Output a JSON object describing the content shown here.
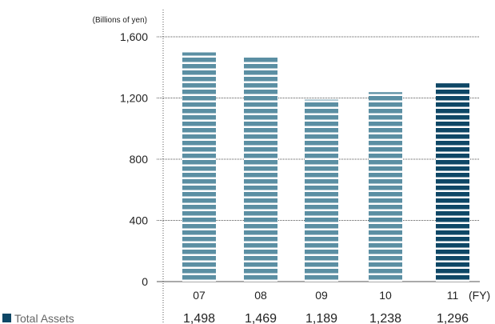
{
  "chart_data": {
    "type": "bar",
    "unit_label": "(Billions of yen)",
    "x_unit_label": "(FY)",
    "categories": [
      "07",
      "08",
      "09",
      "10",
      "11"
    ],
    "values": [
      1498,
      1469,
      1189,
      1238,
      1296
    ],
    "value_labels": [
      "1,498",
      "1,469",
      "1,189",
      "1,238",
      "1,296"
    ],
    "ylim": [
      0,
      1600
    ],
    "yticks": [
      0,
      400,
      800,
      1200,
      1600
    ],
    "ytick_labels": [
      "0",
      "400",
      "800",
      "1,200",
      "1,600"
    ],
    "legend": "Total Assets",
    "grid": true,
    "colors": {
      "bar": "#5b8fa3",
      "highlight": "#0e4766",
      "legend_marker": "#0e4766",
      "grid": "#555555"
    }
  }
}
